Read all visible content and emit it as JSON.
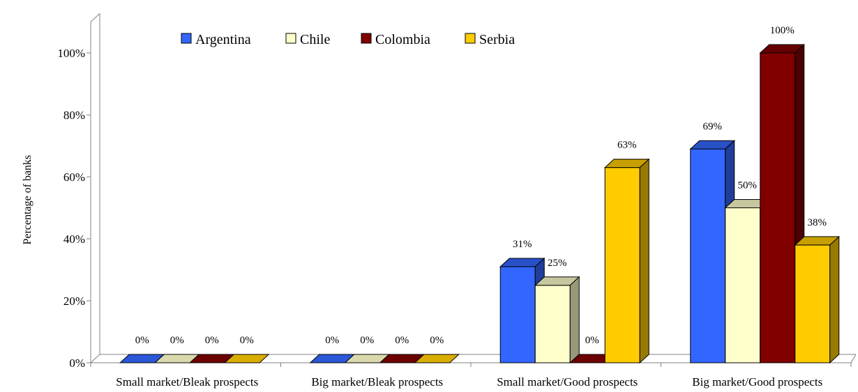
{
  "chart_data": {
    "type": "bar",
    "ylabel": "Percentage of banks",
    "xlabel": "",
    "ylim": [
      0,
      100
    ],
    "y_ticks": [
      "0%",
      "20%",
      "40%",
      "60%",
      "80%",
      "100%"
    ],
    "legend_position": "top",
    "grid": false,
    "categories": [
      "Small market/Bleak prospects",
      "Big market/Bleak prospects",
      "Small market/Good prospects",
      "Big market/Good prospects"
    ],
    "series": [
      {
        "name": "Argentina",
        "color": "#3366ff",
        "values": [
          0,
          0,
          31,
          69
        ],
        "labels": [
          "0%",
          "0%",
          "31%",
          "69%"
        ]
      },
      {
        "name": "Chile",
        "color": "#ffffcc",
        "values": [
          0,
          0,
          25,
          50
        ],
        "labels": [
          "0%",
          "0%",
          "25%",
          "50%"
        ]
      },
      {
        "name": "Colombia",
        "color": "#800000",
        "values": [
          0,
          0,
          0,
          100
        ],
        "labels": [
          "0%",
          "0%",
          "0%",
          "100%"
        ]
      },
      {
        "name": "Serbia",
        "color": "#ffcc00",
        "values": [
          0,
          0,
          63,
          38
        ],
        "labels": [
          "0%",
          "0%",
          "63%",
          "38%"
        ]
      }
    ]
  }
}
